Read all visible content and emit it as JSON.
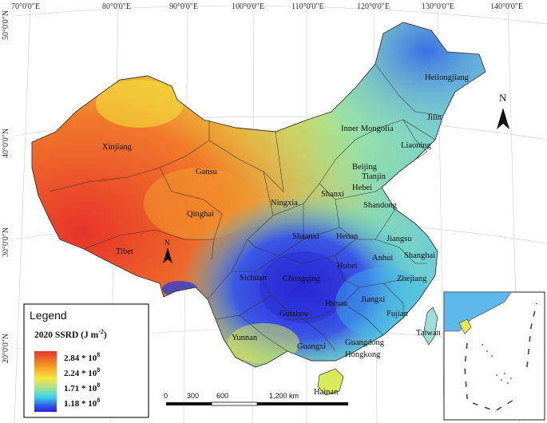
{
  "graticule": {
    "lon": [
      "70°0'0\"E",
      "80°0'0\"E",
      "90°0'0\"E",
      "100°0'0\"E",
      "110°0'0\"E",
      "120°0'0\"E",
      "130°0'0\"E",
      "140°0'0\"E"
    ],
    "lat": [
      "50°0'0\"N",
      "40°0'0\"N",
      "30°0'0\"N",
      "20°0'0\"N"
    ]
  },
  "provinces": [
    "Xinjiang",
    "Tibet",
    "Qinghai",
    "Gansu",
    "Inner Mongolia",
    "Heilongjiang",
    "Jilin",
    "Liaoning",
    "Beijing",
    "Tianjin",
    "Hebei",
    "Shanxi",
    "Shandong",
    "Ningxia",
    "Shaanxi",
    "Henan",
    "Jiangsu",
    "Anhui",
    "Shanghai",
    "Hubei",
    "Zhejiang",
    "Sichuan",
    "Chongqing",
    "Guizhou",
    "Hunan",
    "Jiangxi",
    "Fujian",
    "Yunnan",
    "Guangxi",
    "Guangdong",
    "Hongkong",
    "Taiwan",
    "Hainan"
  ],
  "north_label": "N",
  "legend": {
    "title": "Legend",
    "subtitle": "2020 SSRD (J m",
    "subtitle_sup": "-2",
    "subtitle_end": ")",
    "ticks": [
      "2.84 * 10",
      "2.24 * 10",
      "1.71 * 10",
      "1.18 * 10"
    ],
    "exponent": "8",
    "colors": [
      "#e8342a",
      "#f5a623",
      "#f4e840",
      "#a6e38a",
      "#3fd6e8",
      "#2d5be6",
      "#2a1fd6"
    ]
  },
  "scale_bar": {
    "ticks": [
      "0",
      "300",
      "600",
      "1,200 km"
    ]
  }
}
